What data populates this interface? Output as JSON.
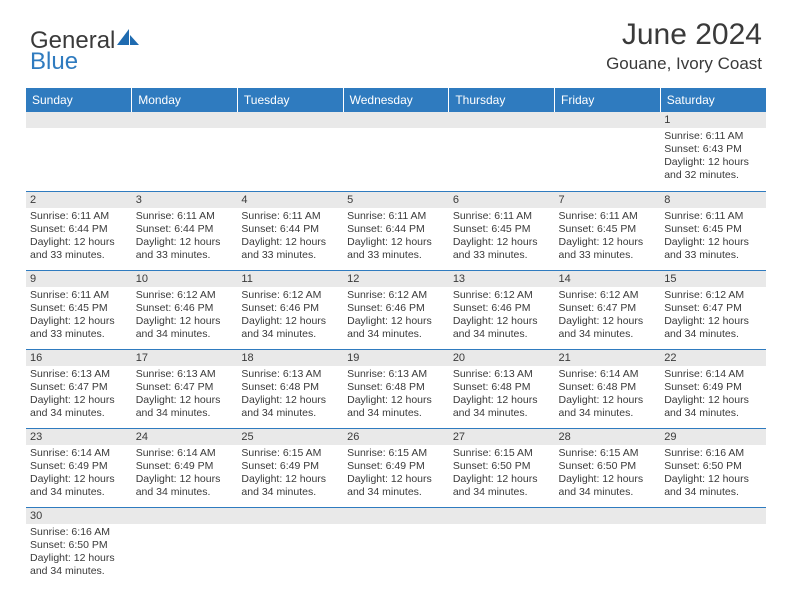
{
  "brand": {
    "part1": "General",
    "part2": "Blue"
  },
  "title": "June 2024",
  "location": "Gouane, Ivory Coast",
  "colors": {
    "header_bg": "#2f7bbf",
    "header_text": "#ffffff",
    "grid_line": "#2f7bbf",
    "daybar_bg": "#e9e9e9",
    "text": "#3a3a3a",
    "page_bg": "#ffffff"
  },
  "typography": {
    "title_fontsize": 30,
    "location_fontsize": 17,
    "dayheader_fontsize": 12,
    "daynum_fontsize": 11,
    "body_fontsize": 10.5
  },
  "day_headers": [
    "Sunday",
    "Monday",
    "Tuesday",
    "Wednesday",
    "Thursday",
    "Friday",
    "Saturday"
  ],
  "weeks": [
    [
      null,
      null,
      null,
      null,
      null,
      null,
      {
        "n": "1",
        "sr": "6:11 AM",
        "ss": "6:43 PM",
        "dl": "12 hours and 32 minutes."
      }
    ],
    [
      {
        "n": "2",
        "sr": "6:11 AM",
        "ss": "6:44 PM",
        "dl": "12 hours and 33 minutes."
      },
      {
        "n": "3",
        "sr": "6:11 AM",
        "ss": "6:44 PM",
        "dl": "12 hours and 33 minutes."
      },
      {
        "n": "4",
        "sr": "6:11 AM",
        "ss": "6:44 PM",
        "dl": "12 hours and 33 minutes."
      },
      {
        "n": "5",
        "sr": "6:11 AM",
        "ss": "6:44 PM",
        "dl": "12 hours and 33 minutes."
      },
      {
        "n": "6",
        "sr": "6:11 AM",
        "ss": "6:45 PM",
        "dl": "12 hours and 33 minutes."
      },
      {
        "n": "7",
        "sr": "6:11 AM",
        "ss": "6:45 PM",
        "dl": "12 hours and 33 minutes."
      },
      {
        "n": "8",
        "sr": "6:11 AM",
        "ss": "6:45 PM",
        "dl": "12 hours and 33 minutes."
      }
    ],
    [
      {
        "n": "9",
        "sr": "6:11 AM",
        "ss": "6:45 PM",
        "dl": "12 hours and 33 minutes."
      },
      {
        "n": "10",
        "sr": "6:12 AM",
        "ss": "6:46 PM",
        "dl": "12 hours and 34 minutes."
      },
      {
        "n": "11",
        "sr": "6:12 AM",
        "ss": "6:46 PM",
        "dl": "12 hours and 34 minutes."
      },
      {
        "n": "12",
        "sr": "6:12 AM",
        "ss": "6:46 PM",
        "dl": "12 hours and 34 minutes."
      },
      {
        "n": "13",
        "sr": "6:12 AM",
        "ss": "6:46 PM",
        "dl": "12 hours and 34 minutes."
      },
      {
        "n": "14",
        "sr": "6:12 AM",
        "ss": "6:47 PM",
        "dl": "12 hours and 34 minutes."
      },
      {
        "n": "15",
        "sr": "6:12 AM",
        "ss": "6:47 PM",
        "dl": "12 hours and 34 minutes."
      }
    ],
    [
      {
        "n": "16",
        "sr": "6:13 AM",
        "ss": "6:47 PM",
        "dl": "12 hours and 34 minutes."
      },
      {
        "n": "17",
        "sr": "6:13 AM",
        "ss": "6:47 PM",
        "dl": "12 hours and 34 minutes."
      },
      {
        "n": "18",
        "sr": "6:13 AM",
        "ss": "6:48 PM",
        "dl": "12 hours and 34 minutes."
      },
      {
        "n": "19",
        "sr": "6:13 AM",
        "ss": "6:48 PM",
        "dl": "12 hours and 34 minutes."
      },
      {
        "n": "20",
        "sr": "6:13 AM",
        "ss": "6:48 PM",
        "dl": "12 hours and 34 minutes."
      },
      {
        "n": "21",
        "sr": "6:14 AM",
        "ss": "6:48 PM",
        "dl": "12 hours and 34 minutes."
      },
      {
        "n": "22",
        "sr": "6:14 AM",
        "ss": "6:49 PM",
        "dl": "12 hours and 34 minutes."
      }
    ],
    [
      {
        "n": "23",
        "sr": "6:14 AM",
        "ss": "6:49 PM",
        "dl": "12 hours and 34 minutes."
      },
      {
        "n": "24",
        "sr": "6:14 AM",
        "ss": "6:49 PM",
        "dl": "12 hours and 34 minutes."
      },
      {
        "n": "25",
        "sr": "6:15 AM",
        "ss": "6:49 PM",
        "dl": "12 hours and 34 minutes."
      },
      {
        "n": "26",
        "sr": "6:15 AM",
        "ss": "6:49 PM",
        "dl": "12 hours and 34 minutes."
      },
      {
        "n": "27",
        "sr": "6:15 AM",
        "ss": "6:50 PM",
        "dl": "12 hours and 34 minutes."
      },
      {
        "n": "28",
        "sr": "6:15 AM",
        "ss": "6:50 PM",
        "dl": "12 hours and 34 minutes."
      },
      {
        "n": "29",
        "sr": "6:16 AM",
        "ss": "6:50 PM",
        "dl": "12 hours and 34 minutes."
      }
    ],
    [
      {
        "n": "30",
        "sr": "6:16 AM",
        "ss": "6:50 PM",
        "dl": "12 hours and 34 minutes."
      },
      null,
      null,
      null,
      null,
      null,
      null
    ]
  ],
  "labels": {
    "sunrise": "Sunrise:",
    "sunset": "Sunset:",
    "daylight": "Daylight:"
  }
}
